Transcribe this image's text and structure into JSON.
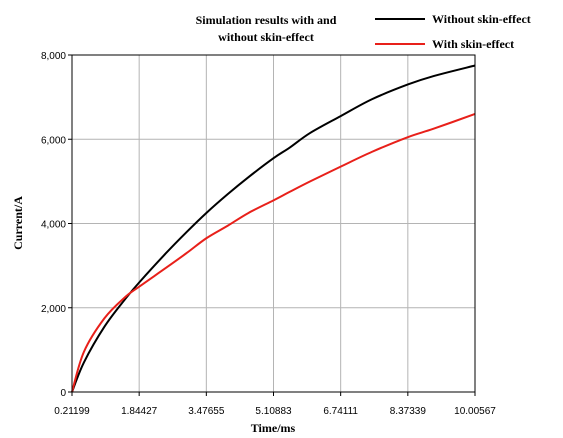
{
  "chart_data": {
    "type": "line",
    "title": [
      "Simulation results with and",
      "without skin-effect"
    ],
    "xlabel": "Time/ms",
    "ylabel": "Current/A",
    "xlim": [
      0.21199,
      10.00567
    ],
    "ylim": [
      0,
      8000
    ],
    "xticks": [
      0.21199,
      1.84427,
      3.47655,
      5.10883,
      6.74111,
      8.37339,
      10.00567
    ],
    "xtick_labels": [
      "0.21199",
      "1.84427",
      "3.47655",
      "5.10883",
      "6.74111",
      "8.37339",
      "10.00567"
    ],
    "yticks": [
      0,
      2000,
      4000,
      6000,
      8000
    ],
    "ytick_labels": [
      "0",
      "2,000",
      "4,000",
      "6,000",
      "8,000"
    ],
    "grid": true,
    "legend_position": "top-right",
    "series": [
      {
        "name": "Without skin-effect",
        "color": "#000000",
        "x": [
          0.21199,
          0.5,
          1.0,
          1.5,
          1.84427,
          2.5,
          3.0,
          3.47655,
          4.0,
          4.5,
          5.10883,
          5.5,
          6.0,
          6.74111,
          7.5,
          8.37339,
          9.0,
          10.00567
        ],
        "y": [
          0,
          700,
          1550,
          2200,
          2600,
          3300,
          3800,
          4250,
          4700,
          5100,
          5550,
          5800,
          6150,
          6550,
          6950,
          7300,
          7500,
          7750
        ]
      },
      {
        "name": "With skin-effect",
        "color": "#e8201a",
        "x": [
          0.21199,
          0.5,
          1.0,
          1.5,
          1.84427,
          2.5,
          3.0,
          3.47655,
          4.0,
          4.5,
          5.10883,
          5.5,
          6.0,
          6.74111,
          7.5,
          8.37339,
          9.0,
          10.00567
        ],
        "y": [
          0,
          950,
          1750,
          2250,
          2500,
          2950,
          3300,
          3650,
          3950,
          4250,
          4550,
          4750,
          5000,
          5350,
          5700,
          6050,
          6250,
          6600
        ]
      }
    ]
  }
}
